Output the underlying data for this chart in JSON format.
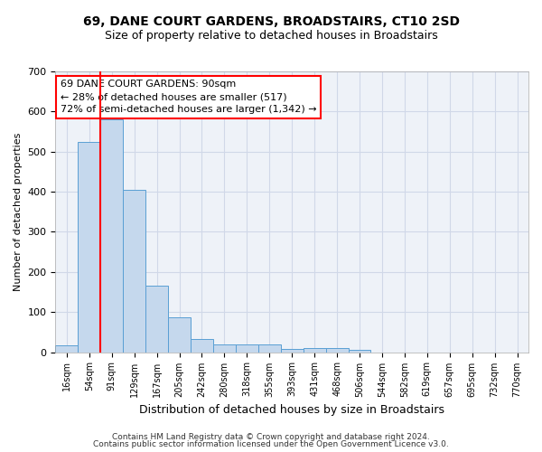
{
  "title": "69, DANE COURT GARDENS, BROADSTAIRS, CT10 2SD",
  "subtitle": "Size of property relative to detached houses in Broadstairs",
  "xlabel": "Distribution of detached houses by size in Broadstairs",
  "ylabel": "Number of detached properties",
  "footer1": "Contains HM Land Registry data © Crown copyright and database right 2024.",
  "footer2": "Contains public sector information licensed under the Open Government Licence v3.0.",
  "bin_labels": [
    "16sqm",
    "54sqm",
    "91sqm",
    "129sqm",
    "167sqm",
    "205sqm",
    "242sqm",
    "280sqm",
    "318sqm",
    "355sqm",
    "393sqm",
    "431sqm",
    "468sqm",
    "506sqm",
    "544sqm",
    "582sqm",
    "619sqm",
    "657sqm",
    "695sqm",
    "732sqm",
    "770sqm"
  ],
  "bar_values": [
    16,
    525,
    580,
    405,
    165,
    88,
    32,
    20,
    20,
    20,
    8,
    10,
    10,
    5,
    0,
    0,
    0,
    0,
    0,
    0,
    0
  ],
  "bar_color": "#c5d8ed",
  "bar_edge_color": "#5a9fd4",
  "grid_color": "#d0d8e8",
  "background_color": "#eef2f8",
  "red_line_bin_index": 2,
  "ylim": [
    0,
    700
  ],
  "yticks": [
    0,
    100,
    200,
    300,
    400,
    500,
    600,
    700
  ],
  "annotation_line1": "69 DANE COURT GARDENS: 90sqm",
  "annotation_line2": "← 28% of detached houses are smaller (517)",
  "annotation_line3": "72% of semi-detached houses are larger (1,342) →",
  "annotation_box_color": "white",
  "annotation_box_edge": "red"
}
